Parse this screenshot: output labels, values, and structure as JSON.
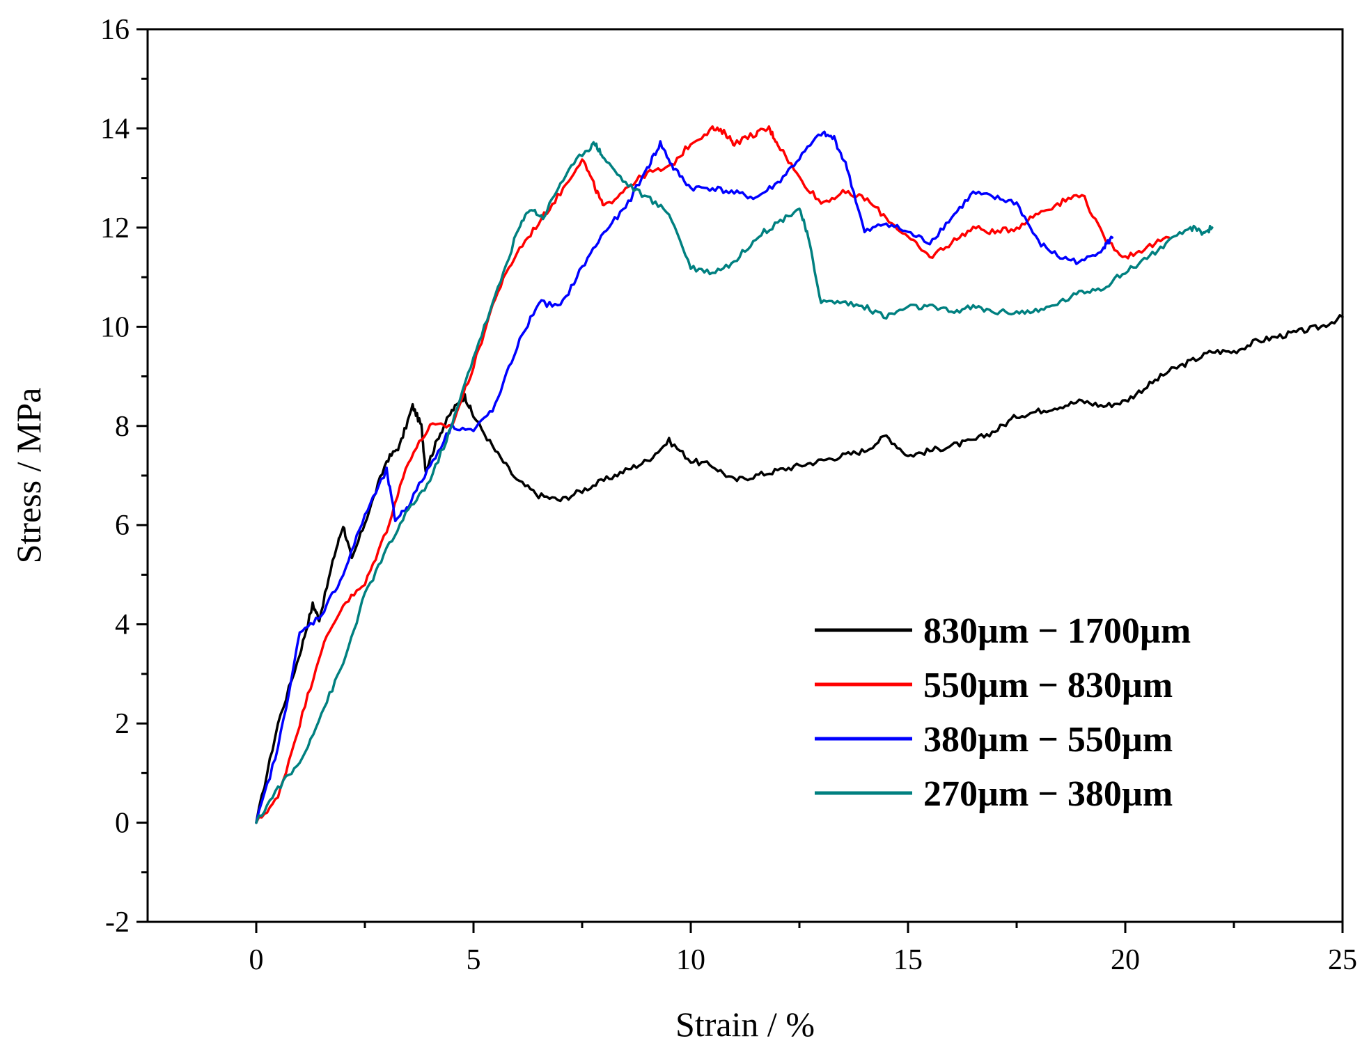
{
  "chart_data": {
    "type": "line",
    "title": "",
    "xlabel": "Strain / %",
    "ylabel": "Stress / MPa",
    "xlim": [
      -2.5,
      25
    ],
    "ylim": [
      -2,
      16
    ],
    "xticks": [
      0,
      5,
      10,
      15,
      20,
      25
    ],
    "yticks": [
      -2,
      0,
      2,
      4,
      6,
      8,
      10,
      12,
      14,
      16
    ],
    "grid": false,
    "legend_position": "bottom-right",
    "series": [
      {
        "name": "830µm − 1700µm",
        "color": "#000000",
        "x": [
          0,
          0.5,
          1.0,
          1.3,
          1.45,
          1.8,
          2.0,
          2.2,
          2.6,
          3.0,
          3.3,
          3.6,
          3.8,
          3.9,
          4.2,
          4.5,
          4.8,
          5.0,
          5.5,
          6.0,
          6.5,
          7.0,
          7.5,
          8.0,
          8.5,
          9.0,
          9.5,
          10.0,
          10.5,
          11.0,
          11.5,
          12.0,
          12.5,
          13.0,
          13.5,
          14.0,
          14.5,
          15.0,
          15.5,
          16.0,
          16.5,
          17.0,
          17.5,
          18.0,
          18.5,
          19.0,
          19.5,
          20.0,
          20.5,
          21.0,
          21.5,
          22.0,
          22.5,
          23.0,
          23.5,
          24.0,
          24.5,
          25.0
        ],
        "y": [
          0,
          2.0,
          3.4,
          4.4,
          4.1,
          5.4,
          6.0,
          5.3,
          6.3,
          7.3,
          7.6,
          8.4,
          8.0,
          7.1,
          7.8,
          8.3,
          8.6,
          8.2,
          7.5,
          6.9,
          6.6,
          6.5,
          6.7,
          6.9,
          7.1,
          7.3,
          7.7,
          7.3,
          7.2,
          6.9,
          7.0,
          7.1,
          7.2,
          7.3,
          7.4,
          7.5,
          7.8,
          7.4,
          7.5,
          7.6,
          7.7,
          7.9,
          8.2,
          8.3,
          8.4,
          8.5,
          8.4,
          8.5,
          8.8,
          9.1,
          9.3,
          9.5,
          9.5,
          9.7,
          9.8,
          9.9,
          10.0,
          10.2
        ]
      },
      {
        "name": "550µm − 830µm",
        "color": "#ff0000",
        "x": [
          0,
          0.5,
          1.0,
          1.5,
          2.0,
          2.5,
          3.0,
          3.5,
          4.0,
          4.5,
          5.0,
          5.5,
          6.0,
          6.5,
          7.0,
          7.5,
          7.8,
          8.0,
          8.5,
          9.0,
          9.5,
          10.0,
          10.5,
          10.8,
          11.0,
          11.5,
          11.8,
          12.0,
          12.5,
          13.0,
          13.5,
          14.0,
          14.5,
          15.0,
          15.5,
          16.0,
          16.5,
          17.0,
          17.5,
          18.0,
          18.5,
          19.0,
          19.5,
          20.0,
          20.5,
          21.0
        ],
        "y": [
          0,
          0.5,
          2.0,
          3.5,
          4.4,
          4.8,
          5.9,
          7.3,
          8.0,
          8.0,
          9.2,
          10.6,
          11.5,
          12.1,
          12.7,
          13.4,
          12.8,
          12.4,
          12.8,
          13.1,
          13.2,
          13.7,
          14.0,
          13.9,
          13.7,
          13.9,
          14.0,
          13.7,
          13.0,
          12.5,
          12.7,
          12.6,
          12.2,
          11.8,
          11.4,
          11.7,
          12.0,
          11.9,
          12.0,
          12.3,
          12.5,
          12.7,
          11.8,
          11.4,
          11.6,
          11.8
        ]
      },
      {
        "name": "380µm − 550µm",
        "color": "#0000ff",
        "x": [
          0,
          0.5,
          1.0,
          1.5,
          2.0,
          2.5,
          3.0,
          3.2,
          3.5,
          4.0,
          4.5,
          5.0,
          5.5,
          6.0,
          6.5,
          7.0,
          7.5,
          8.0,
          8.5,
          9.0,
          9.3,
          9.6,
          10.0,
          10.5,
          11.0,
          11.5,
          12.0,
          12.5,
          13.0,
          13.3,
          13.6,
          14.0,
          14.5,
          15.0,
          15.5,
          16.0,
          16.5,
          17.0,
          17.5,
          18.0,
          18.5,
          19.0,
          19.5,
          19.7
        ],
        "y": [
          0,
          1.5,
          3.8,
          4.2,
          5.0,
          6.2,
          7.1,
          6.1,
          6.4,
          7.2,
          8.0,
          7.9,
          8.4,
          9.6,
          10.5,
          10.4,
          11.2,
          11.9,
          12.4,
          13.2,
          13.7,
          13.2,
          12.8,
          12.8,
          12.7,
          12.6,
          12.9,
          13.4,
          13.9,
          13.8,
          13.2,
          11.9,
          12.1,
          11.9,
          11.7,
          12.2,
          12.7,
          12.6,
          12.5,
          11.7,
          11.4,
          11.3,
          11.6,
          11.8
        ]
      },
      {
        "name": "270µm − 380µm",
        "color": "#008080",
        "x": [
          0,
          0.5,
          1.0,
          1.5,
          2.0,
          2.5,
          3.0,
          3.5,
          4.0,
          4.5,
          5.0,
          5.5,
          6.0,
          6.3,
          6.6,
          7.0,
          7.5,
          7.8,
          8.0,
          8.5,
          9.0,
          9.5,
          10.0,
          10.5,
          11.0,
          11.5,
          12.0,
          12.5,
          12.7,
          13.0,
          13.5,
          14.0,
          14.5,
          15.0,
          15.5,
          16.0,
          16.5,
          17.0,
          17.5,
          18.0,
          18.5,
          19.0,
          19.5,
          20.0,
          20.5,
          21.0,
          21.5,
          21.8,
          22.0
        ],
        "y": [
          0,
          0.7,
          1.2,
          2.2,
          3.2,
          4.6,
          5.5,
          6.3,
          6.9,
          8.0,
          9.4,
          10.6,
          11.9,
          12.4,
          12.2,
          12.9,
          13.5,
          13.7,
          13.4,
          12.9,
          12.6,
          12.3,
          11.2,
          11.1,
          11.3,
          11.8,
          12.1,
          12.4,
          11.8,
          10.5,
          10.5,
          10.4,
          10.2,
          10.4,
          10.4,
          10.3,
          10.4,
          10.3,
          10.3,
          10.3,
          10.5,
          10.7,
          10.8,
          11.1,
          11.4,
          11.7,
          12.0,
          11.9,
          12.0
        ]
      }
    ]
  }
}
